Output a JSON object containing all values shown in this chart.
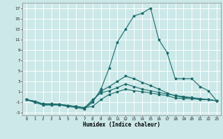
{
  "xlabel": "Humidex (Indice chaleur)",
  "background_color": "#cce8e8",
  "grid_color": "#ffffff",
  "line_color": "#1a6b6b",
  "xlim": [
    -0.5,
    23.5
  ],
  "ylim": [
    -3.5,
    18.0
  ],
  "xticks": [
    0,
    1,
    2,
    3,
    4,
    5,
    6,
    7,
    8,
    9,
    10,
    11,
    12,
    13,
    14,
    15,
    16,
    17,
    18,
    19,
    20,
    21,
    22,
    23
  ],
  "yticks": [
    -3,
    -1,
    1,
    3,
    5,
    7,
    9,
    11,
    13,
    15,
    17
  ],
  "line1_x": [
    0,
    1,
    2,
    3,
    4,
    5,
    6,
    7,
    8,
    9,
    10,
    11,
    12,
    13,
    14,
    15,
    16,
    17,
    18,
    19,
    20,
    21,
    22,
    23
  ],
  "line1_y": [
    -0.5,
    -1.0,
    -1.5,
    -1.5,
    -1.5,
    -1.7,
    -1.8,
    -2.0,
    -1.8,
    -0.5,
    0.5,
    1.0,
    1.5,
    1.2,
    1.0,
    0.8,
    0.5,
    0.3,
    -0.2,
    -0.3,
    -0.3,
    -0.5,
    -0.5,
    -0.7
  ],
  "line2_x": [
    0,
    1,
    2,
    3,
    4,
    5,
    6,
    7,
    8,
    9,
    10,
    11,
    12,
    13,
    14,
    15,
    16,
    17,
    18,
    19,
    20,
    21,
    22,
    23
  ],
  "line2_y": [
    -0.5,
    -0.8,
    -1.3,
    -1.3,
    -1.4,
    -1.6,
    -1.8,
    -2.1,
    -0.8,
    1.1,
    2.0,
    3.0,
    4.0,
    3.5,
    2.8,
    2.2,
    1.5,
    0.8,
    0.2,
    -0.1,
    -0.2,
    -0.4,
    -0.5,
    -0.7
  ],
  "line3_x": [
    0,
    1,
    2,
    3,
    4,
    5,
    6,
    7,
    8,
    9,
    10,
    11,
    12,
    13,
    14,
    15,
    16,
    17,
    18,
    19,
    20,
    21,
    22,
    23
  ],
  "line3_y": [
    -0.5,
    -1.0,
    -1.5,
    -1.5,
    -1.5,
    -1.8,
    -2.0,
    -2.3,
    -1.0,
    1.5,
    5.5,
    10.5,
    13.0,
    15.5,
    16.0,
    17.0,
    11.0,
    8.5,
    3.5,
    3.5,
    3.5,
    2.0,
    1.2,
    -0.7
  ],
  "line4_x": [
    0,
    1,
    2,
    3,
    4,
    5,
    6,
    7,
    8,
    9,
    10,
    11,
    12,
    13,
    14,
    15,
    16,
    17,
    18,
    19,
    20,
    21,
    22,
    23
  ],
  "line4_y": [
    -0.5,
    -0.8,
    -1.3,
    -1.3,
    -1.4,
    -1.6,
    -1.8,
    -2.1,
    -0.5,
    0.8,
    1.2,
    1.8,
    2.5,
    2.0,
    1.5,
    1.2,
    0.9,
    0.6,
    0.3,
    0.1,
    -0.1,
    -0.3,
    -0.5,
    -0.7
  ]
}
